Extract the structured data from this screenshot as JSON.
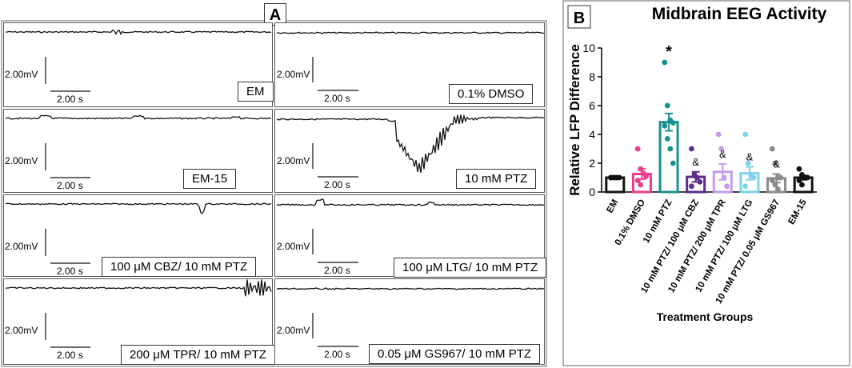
{
  "panel_a": {
    "letter": "A",
    "scale_voltage": "2.00mV",
    "scale_time": "2.00 s",
    "traces": [
      {
        "label": "EM"
      },
      {
        "label": "0.1% DMSO"
      },
      {
        "label": "EM-15"
      },
      {
        "label": "10 mM PTZ"
      },
      {
        "label": "100 μM CBZ/ 10 mM PTZ"
      },
      {
        "label": "100 μM LTG/ 10 mM PTZ"
      },
      {
        "label": "200 μM TPR/ 10 mM PTZ"
      },
      {
        "label": "0.05 μM GS967/ 10 mM PTZ"
      }
    ]
  },
  "panel_b": {
    "letter": "B",
    "chart_data": {
      "type": "bar",
      "title": "Midbrain EEG Activity",
      "xlabel": "Treatment Groups",
      "ylabel": "Relative LFP Difference",
      "ylim": [
        0,
        10
      ],
      "yticks": [
        0,
        2,
        4,
        6,
        8,
        10
      ],
      "categories": [
        "EM",
        "0.1% DMSO",
        "10 mM PTZ",
        "10 mM PTZ/ 100 μM CBZ",
        "10 mM PTZ/ 200 μM TPR",
        "10 mM PTZ/ 100 μM LTG",
        "10 mM PTZ/ 0.05 μM GS967",
        "EM-15"
      ],
      "values": [
        1.0,
        1.25,
        4.85,
        1.05,
        1.4,
        1.3,
        0.95,
        1.0
      ],
      "errors": [
        0.05,
        0.35,
        0.6,
        0.35,
        0.55,
        0.45,
        0.3,
        0.15
      ],
      "points": [
        [
          1,
          1,
          1,
          1,
          1,
          1,
          1
        ],
        [
          3.0,
          1.6,
          1.3,
          1.1,
          0.8,
          0.5
        ],
        [
          9.0,
          6.0,
          5.0,
          4.8,
          4.6,
          3.7,
          3.0,
          2.0
        ],
        [
          3.0,
          1.2,
          1.0,
          0.7,
          0.4
        ],
        [
          4.0,
          3.0,
          1.0,
          0.4
        ],
        [
          4.0,
          2.0,
          1.2,
          1.0,
          0.4
        ],
        [
          3.0,
          2.0,
          1.0,
          1.0,
          0.8,
          0.5,
          0.2
        ],
        [
          1.6,
          1.2,
          1.0,
          1.0,
          0.8,
          0.5
        ]
      ],
      "colors": [
        "#111111",
        "#e83e8c",
        "#17918e",
        "#5b2d8e",
        "#c39be8",
        "#7dd3ea",
        "#8a8a8a",
        "#111111"
      ],
      "annotations": [
        "",
        "",
        "*",
        "&",
        "&",
        "&",
        "&",
        ""
      ]
    }
  }
}
